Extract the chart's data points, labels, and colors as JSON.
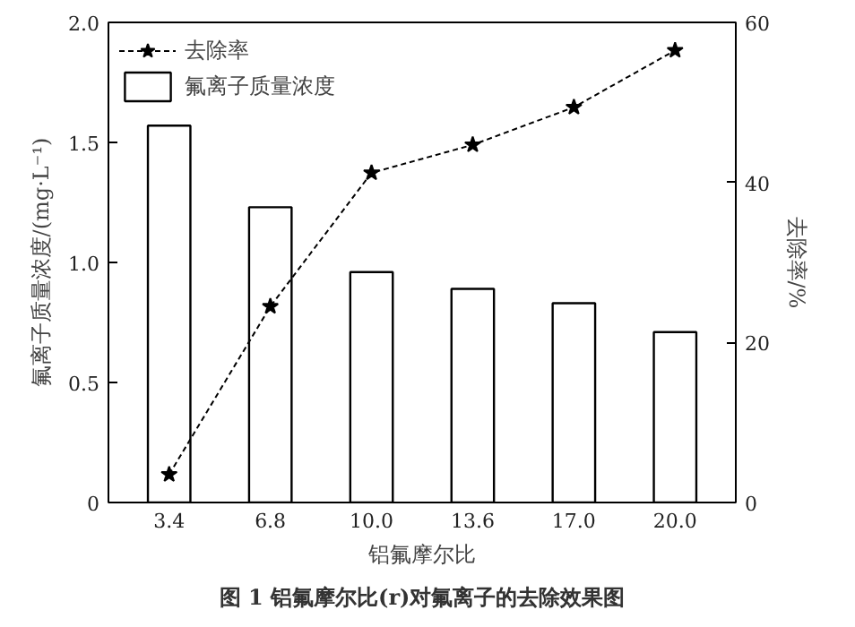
{
  "chart_data": {
    "type": "bar",
    "xlabel": "铝氟摩尔比",
    "ylabel": "氟离子质量浓度/(mg·L⁻¹)",
    "y2label": "去除率/%",
    "categories": [
      "3.4",
      "6.8",
      "10.0",
      "13.6",
      "17.0",
      "20.0"
    ],
    "series": [
      {
        "name": "去除率",
        "type": "line",
        "axis": "y2",
        "color": "#000000",
        "marker": "star",
        "line_style": "dashed",
        "values": [
          3.5,
          24.5,
          41.2,
          44.7,
          49.4,
          56.5
        ]
      },
      {
        "name": "氟离子质量浓度",
        "color": "#ffffff",
        "values": [
          1.57,
          1.23,
          0.96,
          0.89,
          0.83,
          0.71
        ]
      }
    ],
    "ylim": [
      0,
      2.0
    ],
    "yticks": [
      0,
      0.5,
      {
        "value": 1,
        "label": "1.0"
      },
      1.5,
      {
        "value": 2,
        "label": "2.0"
      }
    ],
    "y2lim": [
      0,
      60
    ],
    "y2ticks": [
      0,
      20,
      40,
      60
    ],
    "grid": false,
    "legend": "top left",
    "annotations": [
      "图 1 铝氟摩尔比(r)对氟离子的去除效果图"
    ]
  }
}
